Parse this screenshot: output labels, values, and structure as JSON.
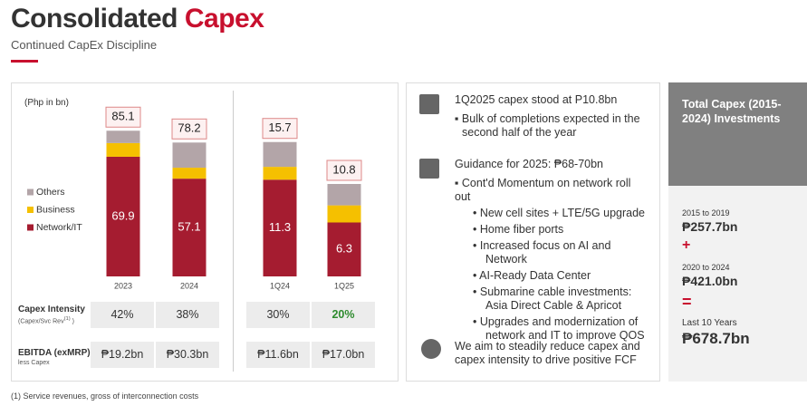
{
  "header": {
    "title_black": "Consolidated",
    "title_red": "Capex",
    "subtitle": "Continued CapEx Discipline"
  },
  "chart_data": [
    {
      "type": "bar",
      "stacked": true,
      "y_label": "(Php in bn)",
      "categories": [
        "2023",
        "2024"
      ],
      "ylim": [
        0,
        90
      ],
      "series": [
        {
          "name": "Network/IT",
          "color": "#a51c30",
          "values": [
            69.9,
            57.1
          ],
          "show_labels": true
        },
        {
          "name": "Business",
          "color": "#f5c000",
          "values": [
            8.0,
            6.4
          ]
        },
        {
          "name": "Others",
          "color": "#b3a5a8",
          "values": [
            7.2,
            14.7
          ]
        }
      ],
      "totals": [
        85.1,
        78.2
      ]
    },
    {
      "type": "bar",
      "stacked": true,
      "categories": [
        "1Q24",
        "1Q25"
      ],
      "ylim": [
        0,
        18
      ],
      "series": [
        {
          "color": "#a51c30",
          "values": [
            11.3,
            6.3
          ],
          "show_labels": true
        },
        {
          "color": "#f5c000",
          "values": [
            1.5,
            2.0
          ]
        },
        {
          "color": "#b3a5a8",
          "values": [
            2.9,
            2.5
          ]
        }
      ],
      "totals": [
        15.7,
        10.8
      ]
    }
  ],
  "table": {
    "intensity": {
      "label": "Capex Intensity",
      "sub": "(Capex/Svc Rev",
      "sub_note": "(1)",
      "sub_end": " )",
      "values": [
        "42%",
        "38%",
        "30%",
        "20%"
      ]
    },
    "ebitda": {
      "label": "EBITDA (exMRP)",
      "sub": "less Capex",
      "values": [
        "₱19.2bn",
        "₱30.3bn",
        "₱11.6bn",
        "₱17.0bn"
      ]
    }
  },
  "notes": {
    "item1": {
      "heading": "1Q2025 capex stood at P10.8bn",
      "bullets": [
        "Bulk of completions expected in the second half of the year"
      ]
    },
    "item2": {
      "heading": "Guidance for 2025: ₱68-70bn",
      "bullet": "Cont'd Momentum on network roll out",
      "sub_bullets": [
        "New cell sites + LTE/5G upgrade",
        "Home fiber ports",
        "Increased focus on AI and Network",
        "AI-Ready Data Center",
        "Submarine cable investments: Asia Direct Cable & Apricot",
        "Upgrades and modernization of network and IT to improve QOS"
      ]
    },
    "item3": {
      "heading": "We aim to steadily reduce capex and capex intensity to drive positive FCF"
    }
  },
  "summary": {
    "title": "Total Capex (2015-2024) Investments",
    "entries": [
      {
        "period": "2015 to 2019",
        "amount": "₱257.7bn"
      },
      {
        "period": "2020 to 2024",
        "amount": "₱421.0bn"
      },
      {
        "period": "Last 10 Years",
        "amount": "₱678.7bn"
      }
    ],
    "plus": "+",
    "equals": "="
  },
  "footnote": "(1) Service revenues, gross of interconnection costs"
}
